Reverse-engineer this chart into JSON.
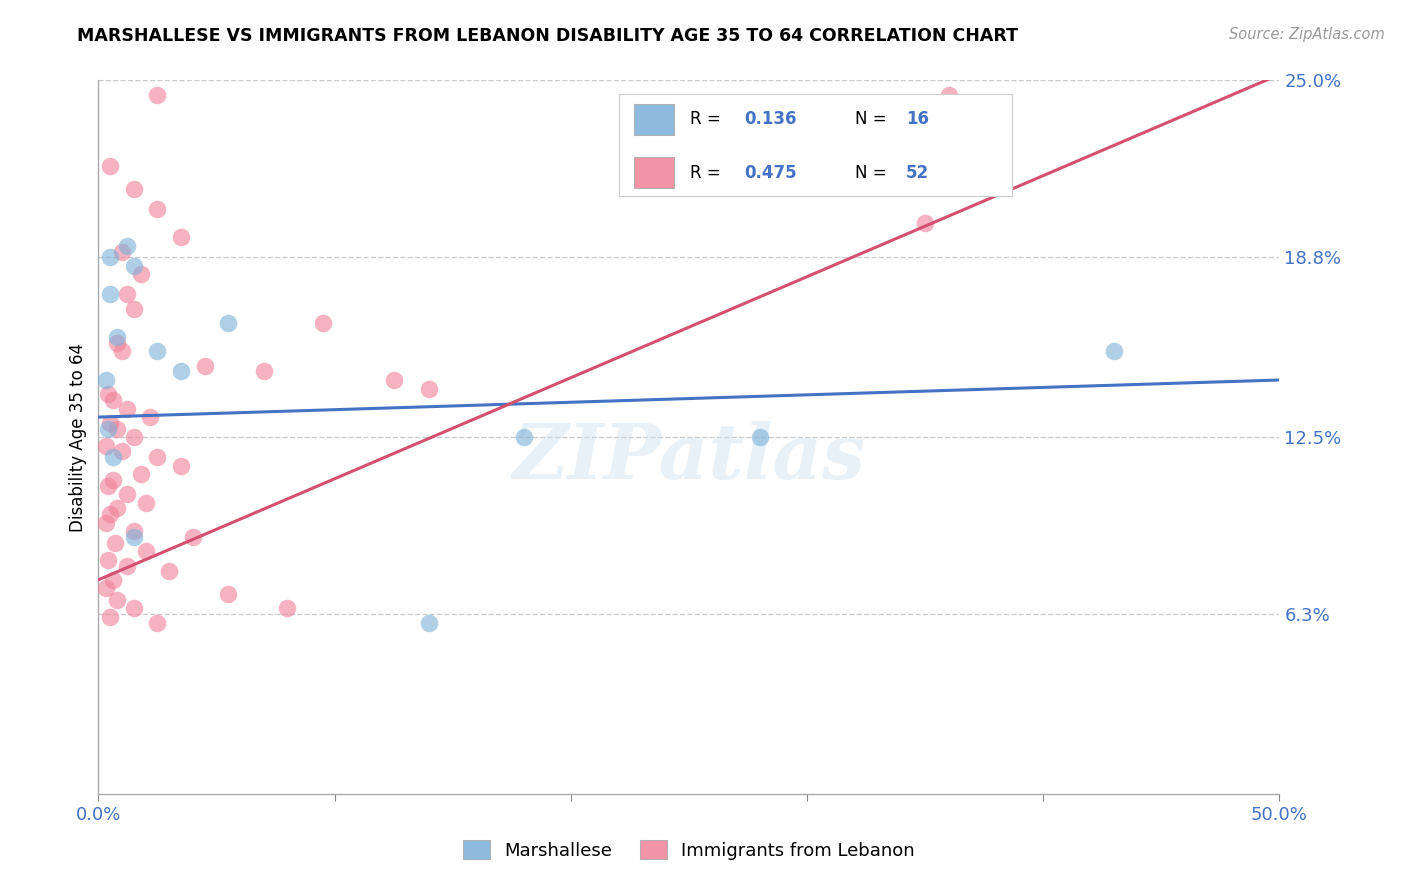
{
  "title": "MARSHALLESE VS IMMIGRANTS FROM LEBANON DISABILITY AGE 35 TO 64 CORRELATION CHART",
  "source_text": "Source: ZipAtlas.com",
  "ylabel": "Disability Age 35 to 64",
  "xlim": [
    0.0,
    50.0
  ],
  "ylim": [
    0.0,
    25.0
  ],
  "y_ticks_right": [
    6.3,
    12.5,
    18.8,
    25.0
  ],
  "y_tick_labels_right": [
    "6.3%",
    "12.5%",
    "18.8%",
    "25.0%"
  ],
  "grid_color": "#cccccc",
  "background_color": "#ffffff",
  "marshallese_color": "#7ab0d8",
  "lebanon_color": "#f08098",
  "marshallese_line_color": "#4472c4",
  "lebanon_line_color": "#d45070",
  "marshallese_R": 0.136,
  "marshallese_N": 16,
  "lebanon_R": 0.475,
  "lebanon_N": 52,
  "marshallese_line": [
    [
      0,
      13.2
    ],
    [
      50,
      14.5
    ]
  ],
  "lebanon_line": [
    [
      0,
      7.5
    ],
    [
      50,
      25.2
    ]
  ],
  "marshallese_points": [
    [
      0.5,
      18.8
    ],
    [
      1.5,
      18.5
    ],
    [
      0.5,
      17.5
    ],
    [
      1.2,
      19.2
    ],
    [
      0.8,
      16.0
    ],
    [
      2.5,
      15.5
    ],
    [
      0.3,
      14.5
    ],
    [
      3.5,
      14.8
    ],
    [
      5.5,
      16.5
    ],
    [
      28.0,
      12.5
    ],
    [
      43.0,
      15.5
    ],
    [
      18.0,
      12.5
    ],
    [
      0.4,
      12.8
    ],
    [
      0.6,
      11.8
    ],
    [
      1.5,
      9.0
    ],
    [
      14.0,
      6.0
    ]
  ],
  "lebanon_points": [
    [
      2.5,
      24.5
    ],
    [
      36.0,
      24.5
    ],
    [
      0.5,
      22.0
    ],
    [
      1.5,
      21.2
    ],
    [
      2.5,
      20.5
    ],
    [
      3.5,
      19.5
    ],
    [
      1.0,
      19.0
    ],
    [
      1.8,
      18.2
    ],
    [
      1.2,
      17.5
    ],
    [
      1.5,
      17.0
    ],
    [
      9.5,
      16.5
    ],
    [
      35.0,
      20.0
    ],
    [
      0.8,
      15.8
    ],
    [
      1.0,
      15.5
    ],
    [
      4.5,
      15.0
    ],
    [
      7.0,
      14.8
    ],
    [
      12.5,
      14.5
    ],
    [
      14.0,
      14.2
    ],
    [
      0.4,
      14.0
    ],
    [
      0.6,
      13.8
    ],
    [
      1.2,
      13.5
    ],
    [
      2.2,
      13.2
    ],
    [
      0.5,
      13.0
    ],
    [
      0.8,
      12.8
    ],
    [
      1.5,
      12.5
    ],
    [
      0.3,
      12.2
    ],
    [
      1.0,
      12.0
    ],
    [
      2.5,
      11.8
    ],
    [
      3.5,
      11.5
    ],
    [
      1.8,
      11.2
    ],
    [
      0.6,
      11.0
    ],
    [
      0.4,
      10.8
    ],
    [
      1.2,
      10.5
    ],
    [
      2.0,
      10.2
    ],
    [
      0.8,
      10.0
    ],
    [
      0.5,
      9.8
    ],
    [
      0.3,
      9.5
    ],
    [
      1.5,
      9.2
    ],
    [
      4.0,
      9.0
    ],
    [
      0.7,
      8.8
    ],
    [
      2.0,
      8.5
    ],
    [
      0.4,
      8.2
    ],
    [
      1.2,
      8.0
    ],
    [
      3.0,
      7.8
    ],
    [
      0.6,
      7.5
    ],
    [
      0.3,
      7.2
    ],
    [
      5.5,
      7.0
    ],
    [
      0.8,
      6.8
    ],
    [
      1.5,
      6.5
    ],
    [
      0.5,
      6.2
    ],
    [
      8.0,
      6.5
    ],
    [
      2.5,
      6.0
    ]
  ]
}
